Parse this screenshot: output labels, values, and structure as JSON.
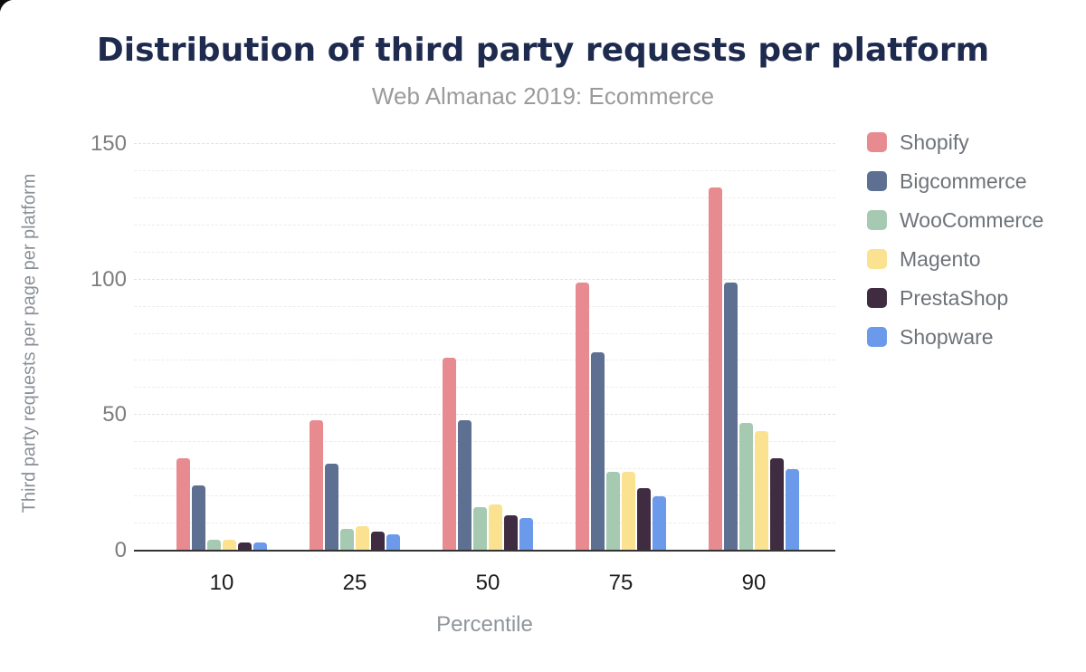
{
  "chart_data": {
    "type": "bar",
    "title": "Distribution of third party requests per platform",
    "subtitle": "Web Almanac 2019: Ecommerce",
    "xlabel": "Percentile",
    "ylabel": "Third party requests per page per platform",
    "categories": [
      "10",
      "25",
      "50",
      "75",
      "90"
    ],
    "series": [
      {
        "name": "Shopify",
        "color": "#e78b90",
        "values": [
          34,
          48,
          71,
          99,
          134
        ]
      },
      {
        "name": "Bigcommerce",
        "color": "#5d7092",
        "values": [
          24,
          32,
          48,
          73,
          99
        ]
      },
      {
        "name": "WooCommerce",
        "color": "#a6c9b1",
        "values": [
          4,
          8,
          16,
          29,
          47
        ]
      },
      {
        "name": "Magento",
        "color": "#fae290",
        "values": [
          4,
          9,
          17,
          29,
          44
        ]
      },
      {
        "name": "PrestaShop",
        "color": "#402c41",
        "values": [
          3,
          7,
          13,
          23,
          34
        ]
      },
      {
        "name": "Shopware",
        "color": "#6a9ae9",
        "values": [
          3,
          6,
          12,
          20,
          30
        ]
      }
    ],
    "y_axis": {
      "ticks": [
        0,
        50,
        100,
        150
      ],
      "minor_step": 10,
      "max": 153
    },
    "grid": true,
    "legend_position": "right"
  },
  "theme": {
    "title_color": "#1e2b4f",
    "subtitle_color": "#9b9b9b",
    "y_tick_color": "#7d7d7d",
    "x_tick_color": "#1d1d1d",
    "axis_title_color": "#8b9096",
    "legend_text_color": "#6e7379",
    "axis_line_color": "#333333",
    "background": "#ffffff"
  }
}
